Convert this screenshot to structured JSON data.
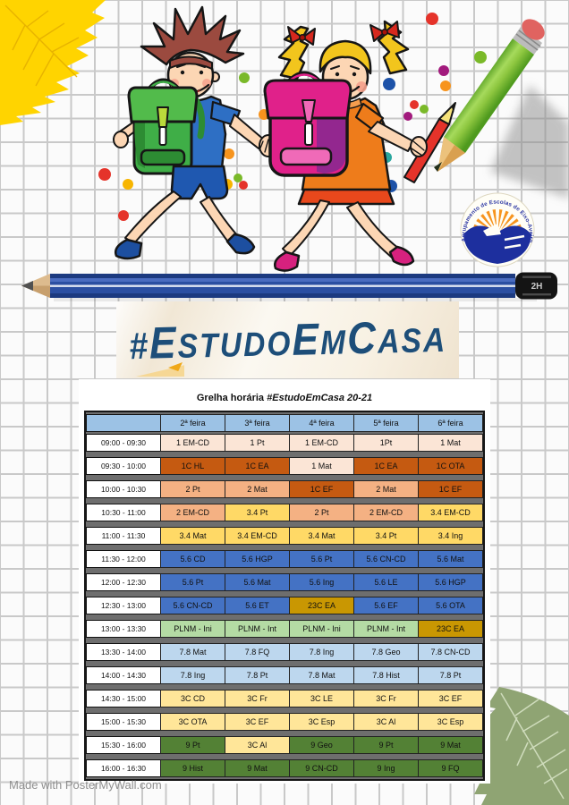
{
  "page": {
    "made_with": "Made with PosterMyWall.com"
  },
  "banner": {
    "color": "#1D4E79",
    "title_parts": [
      {
        "t": "#",
        "size": "hash"
      },
      {
        "t": "E",
        "size": "big"
      },
      {
        "t": "STUDO",
        "size": "small"
      },
      {
        "t": "E",
        "size": "big"
      },
      {
        "t": "M",
        "size": "small"
      },
      {
        "t": "C",
        "size": "big"
      },
      {
        "t": "ASA",
        "size": "small"
      }
    ]
  },
  "logo": {
    "text": "Agrupamento de Escolas de Eixo-Aveiro"
  },
  "decor": {
    "pencil_grade": "2H",
    "dot_colors": {
      "red": "#e5332a",
      "orange": "#f7941d",
      "green": "#7ab929",
      "blue": "#1d52a8",
      "purple": "#a21a7d",
      "yellow": "#f7b500",
      "teal": "#2aa79e"
    },
    "dots": [
      [
        483,
        21,
        7,
        "red"
      ],
      [
        537,
        64,
        7,
        "green"
      ],
      [
        496,
        79,
        6,
        "purple"
      ],
      [
        498,
        96,
        6,
        "orange"
      ],
      [
        435,
        94,
        7,
        "blue"
      ],
      [
        463,
        117,
        5,
        "red"
      ],
      [
        474,
        122,
        5,
        "green"
      ],
      [
        456,
        130,
        5,
        "purple"
      ],
      [
        432,
        176,
        6,
        "teal"
      ],
      [
        437,
        208,
        7,
        "blue"
      ],
      [
        273,
        87,
        6,
        "green"
      ],
      [
        295,
        128,
        6,
        "orange"
      ],
      [
        310,
        143,
        6,
        "blue"
      ],
      [
        256,
        172,
        6,
        "orange"
      ],
      [
        254,
        206,
        6,
        "yellow"
      ],
      [
        266,
        199,
        5,
        "green"
      ],
      [
        272,
        207,
        5,
        "red"
      ],
      [
        143,
        206,
        6,
        "yellow"
      ],
      [
        138,
        241,
        6,
        "red"
      ],
      [
        117,
        195,
        7,
        "red"
      ]
    ]
  },
  "timetable": {
    "title_prefix": "Grelha horária ",
    "title_emph": "#EstudoEmCasa 20-21",
    "days": [
      "2ª feira",
      "3ª feira",
      "4ª feira",
      "5ª feira",
      "6ª feira"
    ],
    "palette": {
      "header": "#9CC2E5",
      "peach_light": "#FBE5D6",
      "orange_dark": "#C55A11",
      "peach": "#F4B183",
      "yellow": "#FFD966",
      "blue": "#4472C4",
      "gold": "#C99702",
      "green_light": "#B4DBA4",
      "blue_light": "#BDD7EE",
      "yellow_light": "#FFE699",
      "green_dark": "#538135",
      "gap": "#6E6E6E"
    },
    "rows": [
      {
        "time": "09:00 - 09:30",
        "cells": [
          {
            "t": "1 EM-CD",
            "c": "peach_light"
          },
          {
            "t": "1 Pt",
            "c": "peach_light"
          },
          {
            "t": "1 EM-CD",
            "c": "peach_light"
          },
          {
            "t": "1Pt",
            "c": "peach_light"
          },
          {
            "t": "1 Mat",
            "c": "peach_light"
          }
        ]
      },
      {
        "time": "09:30 - 10:00",
        "cells": [
          {
            "t": "1C HL",
            "c": "orange_dark"
          },
          {
            "t": "1C EA",
            "c": "orange_dark"
          },
          {
            "t": "1 Mat",
            "c": "peach_light"
          },
          {
            "t": "1C EA",
            "c": "orange_dark"
          },
          {
            "t": "1C OTA",
            "c": "orange_dark"
          }
        ]
      },
      {
        "time": "10:00 - 10:30",
        "cells": [
          {
            "t": "2 Pt",
            "c": "peach"
          },
          {
            "t": "2 Mat",
            "c": "peach"
          },
          {
            "t": "1C EF",
            "c": "orange_dark"
          },
          {
            "t": "2 Mat",
            "c": "peach"
          },
          {
            "t": "1C EF",
            "c": "orange_dark"
          }
        ]
      },
      {
        "time": "10:30 - 11:00",
        "cells": [
          {
            "t": "2 EM-CD",
            "c": "peach"
          },
          {
            "t": "3.4 Pt",
            "c": "yellow"
          },
          {
            "t": "2 Pt",
            "c": "peach"
          },
          {
            "t": "2 EM-CD",
            "c": "peach"
          },
          {
            "t": "3.4 EM-CD",
            "c": "yellow"
          }
        ]
      },
      {
        "time": "11:00 - 11:30",
        "cells": [
          {
            "t": "3.4 Mat",
            "c": "yellow"
          },
          {
            "t": "3.4 EM-CD",
            "c": "yellow"
          },
          {
            "t": "3.4 Mat",
            "c": "yellow"
          },
          {
            "t": "3.4 Pt",
            "c": "yellow"
          },
          {
            "t": "3.4 Ing",
            "c": "yellow"
          }
        ]
      },
      {
        "time": "11:30 - 12:00",
        "cells": [
          {
            "t": "5.6 CD",
            "c": "blue"
          },
          {
            "t": "5.6 HGP",
            "c": "blue"
          },
          {
            "t": "5.6 Pt",
            "c": "blue"
          },
          {
            "t": "5.6 CN-CD",
            "c": "blue"
          },
          {
            "t": "5.6 Mat",
            "c": "blue"
          }
        ]
      },
      {
        "time": "12:00 - 12:30",
        "cells": [
          {
            "t": "5.6 Pt",
            "c": "blue"
          },
          {
            "t": "5.6 Mat",
            "c": "blue"
          },
          {
            "t": "5.6 Ing",
            "c": "blue"
          },
          {
            "t": "5.6 LE",
            "c": "blue"
          },
          {
            "t": "5.6 HGP",
            "c": "blue"
          }
        ]
      },
      {
        "time": "12:30 - 13:00",
        "cells": [
          {
            "t": "5.6 CN-CD",
            "c": "blue"
          },
          {
            "t": "5.6 ET",
            "c": "blue"
          },
          {
            "t": "23C EA",
            "c": "gold"
          },
          {
            "t": "5.6 EF",
            "c": "blue"
          },
          {
            "t": "5.6 OTA",
            "c": "blue"
          }
        ]
      },
      {
        "time": "13:00 - 13:30",
        "cells": [
          {
            "t": "PLNM - Ini",
            "c": "green_light"
          },
          {
            "t": "PLNM - Int",
            "c": "green_light"
          },
          {
            "t": "PLNM - Ini",
            "c": "green_light"
          },
          {
            "t": "PLNM - Int",
            "c": "green_light"
          },
          {
            "t": "23C EA",
            "c": "gold"
          }
        ]
      },
      {
        "time": "13:30 - 14:00",
        "cells": [
          {
            "t": "7.8 Mat",
            "c": "blue_light"
          },
          {
            "t": "7.8 FQ",
            "c": "blue_light"
          },
          {
            "t": "7.8 Ing",
            "c": "blue_light"
          },
          {
            "t": "7.8 Geo",
            "c": "blue_light"
          },
          {
            "t": "7.8 CN-CD",
            "c": "blue_light"
          }
        ]
      },
      {
        "time": "14:00 - 14:30",
        "cells": [
          {
            "t": "7.8 Ing",
            "c": "blue_light"
          },
          {
            "t": "7.8 Pt",
            "c": "blue_light"
          },
          {
            "t": "7.8 Mat",
            "c": "blue_light"
          },
          {
            "t": "7.8 Hist",
            "c": "blue_light"
          },
          {
            "t": "7.8 Pt",
            "c": "blue_light"
          }
        ]
      },
      {
        "time": "14:30 - 15:00",
        "cells": [
          {
            "t": "3C CD",
            "c": "yellow_light"
          },
          {
            "t": "3C Fr",
            "c": "yellow_light"
          },
          {
            "t": "3C LE",
            "c": "yellow_light"
          },
          {
            "t": "3C Fr",
            "c": "yellow_light"
          },
          {
            "t": "3C EF",
            "c": "yellow_light"
          }
        ]
      },
      {
        "time": "15:00 - 15:30",
        "cells": [
          {
            "t": "3C OTA",
            "c": "yellow_light"
          },
          {
            "t": "3C EF",
            "c": "yellow_light"
          },
          {
            "t": "3C Esp",
            "c": "yellow_light"
          },
          {
            "t": "3C Al",
            "c": "yellow_light"
          },
          {
            "t": "3C Esp",
            "c": "yellow_light"
          }
        ]
      },
      {
        "time": "15:30 - 16:00",
        "cells": [
          {
            "t": "9 Pt",
            "c": "green_dark"
          },
          {
            "t": "3C Al",
            "c": "yellow_light"
          },
          {
            "t": "9 Geo",
            "c": "green_dark"
          },
          {
            "t": "9 Pt",
            "c": "green_dark"
          },
          {
            "t": "9 Mat",
            "c": "green_dark"
          }
        ]
      },
      {
        "time": "16:00 - 16:30",
        "cells": [
          {
            "t": "9 Hist",
            "c": "green_dark"
          },
          {
            "t": "9 Mat",
            "c": "green_dark"
          },
          {
            "t": "9 CN-CD",
            "c": "green_dark"
          },
          {
            "t": "9 Ing",
            "c": "green_dark"
          },
          {
            "t": "9 FQ",
            "c": "green_dark"
          }
        ]
      }
    ]
  }
}
